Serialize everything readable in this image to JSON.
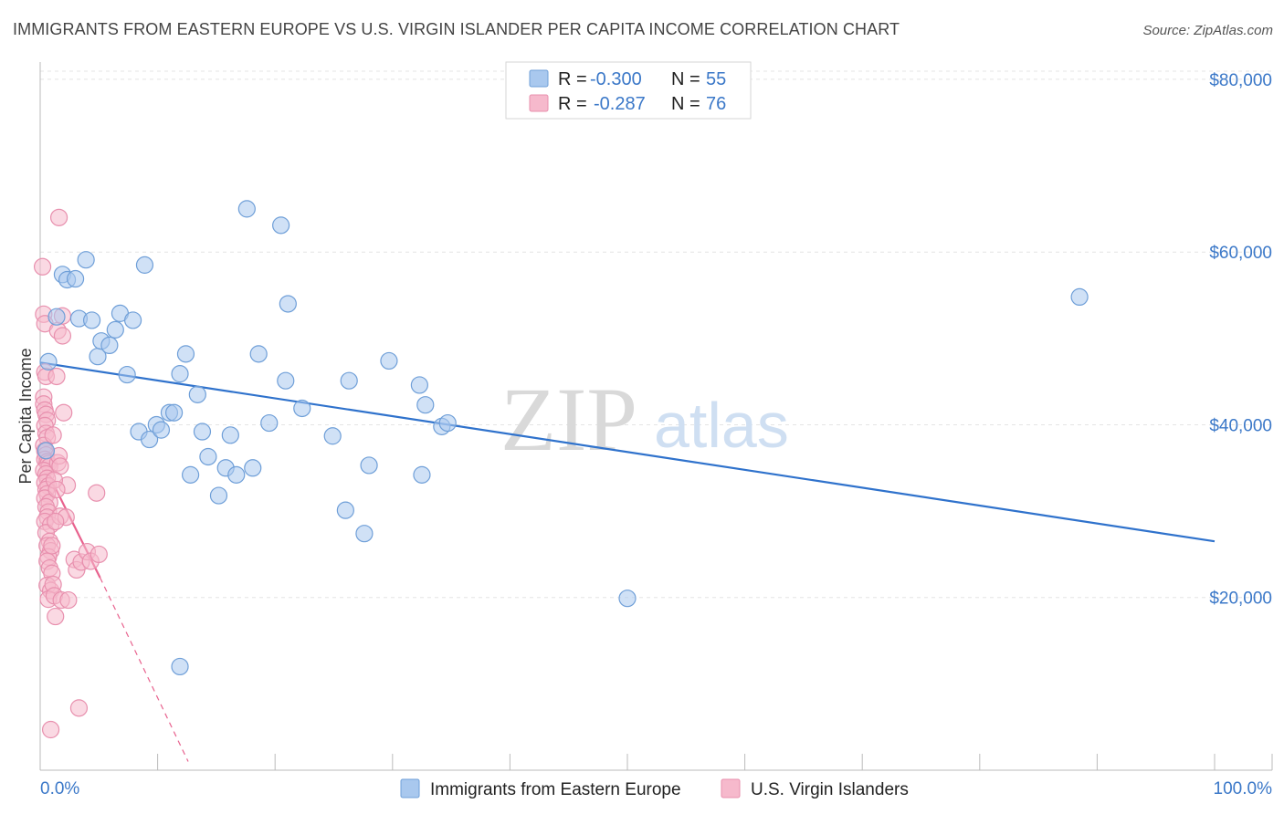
{
  "chart_data": {
    "type": "scatter",
    "title": "IMMIGRANTS FROM EASTERN EUROPE VS U.S. VIRGIN ISLANDER PER CAPITA INCOME CORRELATION CHART",
    "source": "Source: ZipAtlas.com",
    "xlabel": "",
    "ylabel": "Per Capita Income",
    "xlim": [
      0,
      100
    ],
    "ylim": [
      0,
      82000
    ],
    "x_tick_labels": [
      "0.0%",
      "100.0%"
    ],
    "y_ticks": [
      20000,
      40000,
      60000,
      80000
    ],
    "y_tick_labels": [
      "$20,000",
      "$40,000",
      "$60,000",
      "$80,000"
    ],
    "grid": true,
    "watermark": "ZIPatlas",
    "legend_position": "top-center",
    "colors": {
      "blue_fill": "#a9c8ee",
      "blue_stroke": "#6f9fd8",
      "blue_line": "#2f72cc",
      "pink_fill": "#f6b9cc",
      "pink_stroke": "#e890ae",
      "pink_line": "#e8628e",
      "axis_text": "#3b78c8"
    },
    "stats": [
      {
        "r_label": "R =",
        "r_value": "-0.300",
        "n_label": "N =",
        "n_value": "55"
      },
      {
        "r_label": "R =",
        "r_value": "-0.287",
        "n_label": "N =",
        "n_value": "76"
      }
    ],
    "series": [
      {
        "name": "Immigrants from Eastern Europe",
        "color": "blue",
        "trend": {
          "x0": 0,
          "y0": 47200,
          "x1": 100,
          "y1": 26500
        },
        "points": [
          [
            0.5,
            37000
          ],
          [
            0.7,
            47300
          ],
          [
            1.4,
            52500
          ],
          [
            1.9,
            57400
          ],
          [
            2.3,
            56800
          ],
          [
            3.0,
            56900
          ],
          [
            3.3,
            52300
          ],
          [
            3.9,
            59100
          ],
          [
            4.4,
            52100
          ],
          [
            4.9,
            47900
          ],
          [
            5.2,
            49700
          ],
          [
            5.9,
            49200
          ],
          [
            6.4,
            51000
          ],
          [
            6.8,
            52900
          ],
          [
            7.4,
            45800
          ],
          [
            7.9,
            52100
          ],
          [
            8.4,
            39200
          ],
          [
            8.9,
            58500
          ],
          [
            9.3,
            38300
          ],
          [
            9.9,
            40000
          ],
          [
            10.3,
            39400
          ],
          [
            11.0,
            41400
          ],
          [
            11.4,
            41400
          ],
          [
            11.9,
            45900
          ],
          [
            12.4,
            48200
          ],
          [
            12.8,
            34200
          ],
          [
            13.4,
            43500
          ],
          [
            13.8,
            39200
          ],
          [
            14.3,
            36300
          ],
          [
            15.2,
            31800
          ],
          [
            15.8,
            35000
          ],
          [
            16.2,
            38800
          ],
          [
            16.7,
            34200
          ],
          [
            18.1,
            35000
          ],
          [
            18.6,
            48200
          ],
          [
            19.5,
            40200
          ],
          [
            17.6,
            65000
          ],
          [
            20.5,
            63100
          ],
          [
            21.1,
            54000
          ],
          [
            22.3,
            41900
          ],
          [
            24.9,
            38700
          ],
          [
            26.0,
            30100
          ],
          [
            26.3,
            45100
          ],
          [
            27.6,
            27400
          ],
          [
            28.0,
            35300
          ],
          [
            29.7,
            47400
          ],
          [
            32.3,
            44600
          ],
          [
            32.8,
            42300
          ],
          [
            32.5,
            34200
          ],
          [
            34.2,
            39800
          ],
          [
            34.7,
            40200
          ],
          [
            20.9,
            45100
          ],
          [
            11.9,
            12000
          ],
          [
            50.0,
            19900
          ],
          [
            88.5,
            54800
          ]
        ]
      },
      {
        "name": "U.S. Virgin Islanders",
        "color": "pink",
        "trend": {
          "x0": 0,
          "y0": 36200,
          "x1": 5.1,
          "y1": 22300,
          "dash_to_x": 12.6,
          "dash_to_y": 1000
        },
        "points": [
          [
            0.2,
            58300
          ],
          [
            0.3,
            52800
          ],
          [
            0.4,
            51700
          ],
          [
            0.4,
            46100
          ],
          [
            0.5,
            45600
          ],
          [
            0.3,
            43200
          ],
          [
            0.3,
            42400
          ],
          [
            0.4,
            41700
          ],
          [
            0.5,
            41200
          ],
          [
            0.6,
            40500
          ],
          [
            0.4,
            39900
          ],
          [
            0.5,
            39000
          ],
          [
            0.6,
            38500
          ],
          [
            0.3,
            37600
          ],
          [
            0.4,
            37000
          ],
          [
            0.5,
            36500
          ],
          [
            0.4,
            36000
          ],
          [
            0.6,
            35700
          ],
          [
            0.7,
            35500
          ],
          [
            0.8,
            35200
          ],
          [
            0.3,
            34700
          ],
          [
            0.5,
            34300
          ],
          [
            0.6,
            33800
          ],
          [
            0.4,
            33300
          ],
          [
            0.7,
            32900
          ],
          [
            0.5,
            32500
          ],
          [
            0.6,
            32000
          ],
          [
            0.4,
            31500
          ],
          [
            0.8,
            31000
          ],
          [
            0.5,
            30500
          ],
          [
            0.7,
            29900
          ],
          [
            0.6,
            29300
          ],
          [
            0.4,
            28800
          ],
          [
            0.9,
            28400
          ],
          [
            0.5,
            27500
          ],
          [
            0.8,
            26500
          ],
          [
            0.6,
            26000
          ],
          [
            0.9,
            25400
          ],
          [
            0.7,
            24700
          ],
          [
            0.6,
            24200
          ],
          [
            0.8,
            23400
          ],
          [
            1.0,
            22800
          ],
          [
            0.6,
            21400
          ],
          [
            0.9,
            20800
          ],
          [
            1.1,
            21500
          ],
          [
            0.7,
            19800
          ],
          [
            1.2,
            20200
          ],
          [
            1.3,
            17800
          ],
          [
            1.4,
            45600
          ],
          [
            1.5,
            50900
          ],
          [
            1.5,
            35600
          ],
          [
            1.6,
            36400
          ],
          [
            1.7,
            29400
          ],
          [
            1.7,
            35200
          ],
          [
            1.8,
            19700
          ],
          [
            1.9,
            52600
          ],
          [
            1.9,
            50300
          ],
          [
            2.0,
            41400
          ],
          [
            2.2,
            29300
          ],
          [
            2.3,
            33000
          ],
          [
            2.4,
            19700
          ],
          [
            1.6,
            64000
          ],
          [
            2.9,
            24400
          ],
          [
            3.1,
            23200
          ],
          [
            3.3,
            7200
          ],
          [
            3.5,
            24100
          ],
          [
            4.0,
            25300
          ],
          [
            4.3,
            24200
          ],
          [
            4.8,
            32100
          ],
          [
            5.0,
            25000
          ],
          [
            1.3,
            28800
          ],
          [
            1.0,
            26000
          ],
          [
            0.9,
            4700
          ],
          [
            1.2,
            33600
          ],
          [
            1.4,
            32500
          ],
          [
            1.1,
            38800
          ]
        ]
      }
    ]
  }
}
